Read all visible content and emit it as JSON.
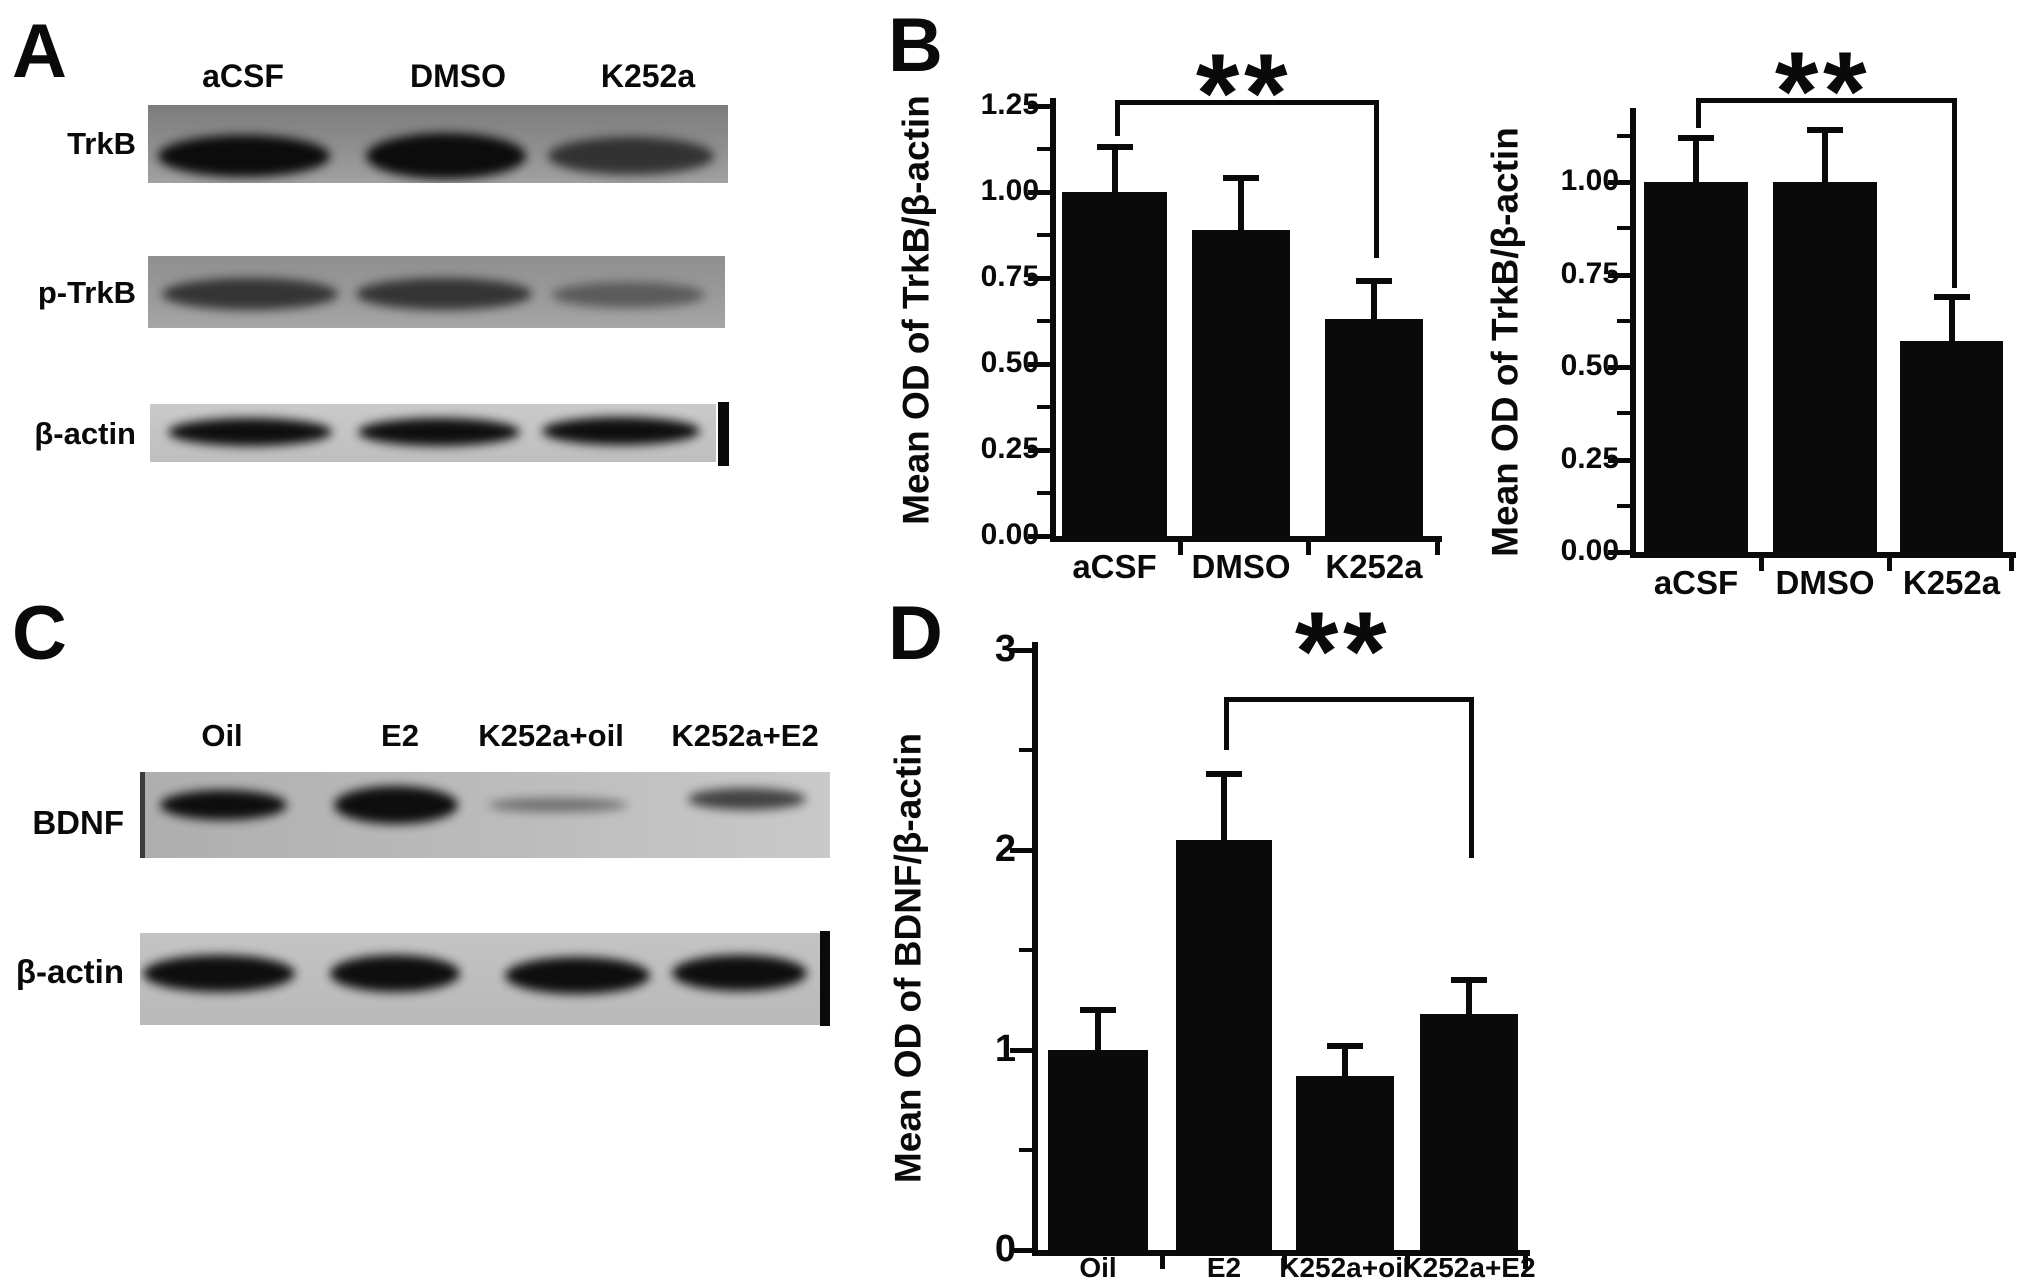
{
  "panels": {
    "A": {
      "label": "A",
      "lane_labels": [
        "aCSF",
        "DMSO",
        "K252a"
      ],
      "blot_rows": [
        {
          "protein": "TrkB",
          "bands": [
            "strong",
            "strong",
            "medium"
          ]
        },
        {
          "protein": "p-TrkB",
          "bands": [
            "medium",
            "medium",
            "faint"
          ]
        },
        {
          "protein": "β-actin",
          "bands": [
            "strong",
            "strong",
            "strong"
          ]
        }
      ]
    },
    "B": {
      "label": "B"
    },
    "C": {
      "label": "C",
      "lane_labels": [
        "Oil",
        "E2",
        "K252a+oil",
        "K252a+E2"
      ],
      "blot_rows": [
        {
          "protein": "BDNF",
          "bands": [
            "strong",
            "strong",
            "faint",
            "medium"
          ]
        },
        {
          "protein": "β-actin",
          "bands": [
            "strong",
            "strong",
            "strong",
            "strong"
          ]
        }
      ]
    },
    "D": {
      "label": "D"
    }
  },
  "chart_data": [
    {
      "id": "panel-b-left",
      "type": "bar",
      "title": "",
      "ylabel": "Mean OD of TrkB/β-actin",
      "xlabel": "",
      "categories": [
        "aCSF",
        "DMSO",
        "K252a"
      ],
      "values": [
        1.0,
        0.89,
        0.63
      ],
      "errors": [
        0.13,
        0.15,
        0.11
      ],
      "yticks": [
        "0.00",
        "0.25",
        "0.50",
        "0.75",
        "1.00",
        "1.25"
      ],
      "ytick_step": 0.25,
      "ylim": [
        0,
        1.28
      ],
      "grid": false,
      "bar_color": "#0a0a0a",
      "significance": {
        "label": "**",
        "between": [
          "aCSF",
          "K252a"
        ]
      }
    },
    {
      "id": "panel-b-right",
      "type": "bar",
      "title": "",
      "ylabel": "Mean OD of TrkB/β-actin",
      "xlabel": "",
      "categories": [
        "aCSF",
        "DMSO",
        "K252a"
      ],
      "values": [
        1.0,
        1.0,
        0.57
      ],
      "errors": [
        0.12,
        0.14,
        0.12
      ],
      "yticks": [
        "0.00",
        "0.25",
        "0.50",
        "0.75",
        "1.00"
      ],
      "ytick_step": 0.25,
      "ylim": [
        0,
        1.2
      ],
      "grid": false,
      "bar_color": "#0a0a0a",
      "significance": {
        "label": "**",
        "between": [
          "aCSF",
          "K252a"
        ]
      }
    },
    {
      "id": "panel-d",
      "type": "bar",
      "title": "",
      "ylabel": "Mean OD of BDNF/β-actin",
      "xlabel": "",
      "categories": [
        "Oil",
        "E2",
        "K252a+oil",
        "K252a+E2"
      ],
      "values": [
        1.0,
        2.05,
        0.87,
        1.18
      ],
      "errors": [
        0.2,
        0.33,
        0.15,
        0.17
      ],
      "yticks": [
        "0",
        "1",
        "2",
        "3"
      ],
      "ytick_step": 1,
      "ylim": [
        0,
        3.05
      ],
      "grid": false,
      "bar_color": "#0a0a0a",
      "significance": {
        "label": "**",
        "between": [
          "E2",
          "K252a+E2"
        ]
      }
    }
  ]
}
